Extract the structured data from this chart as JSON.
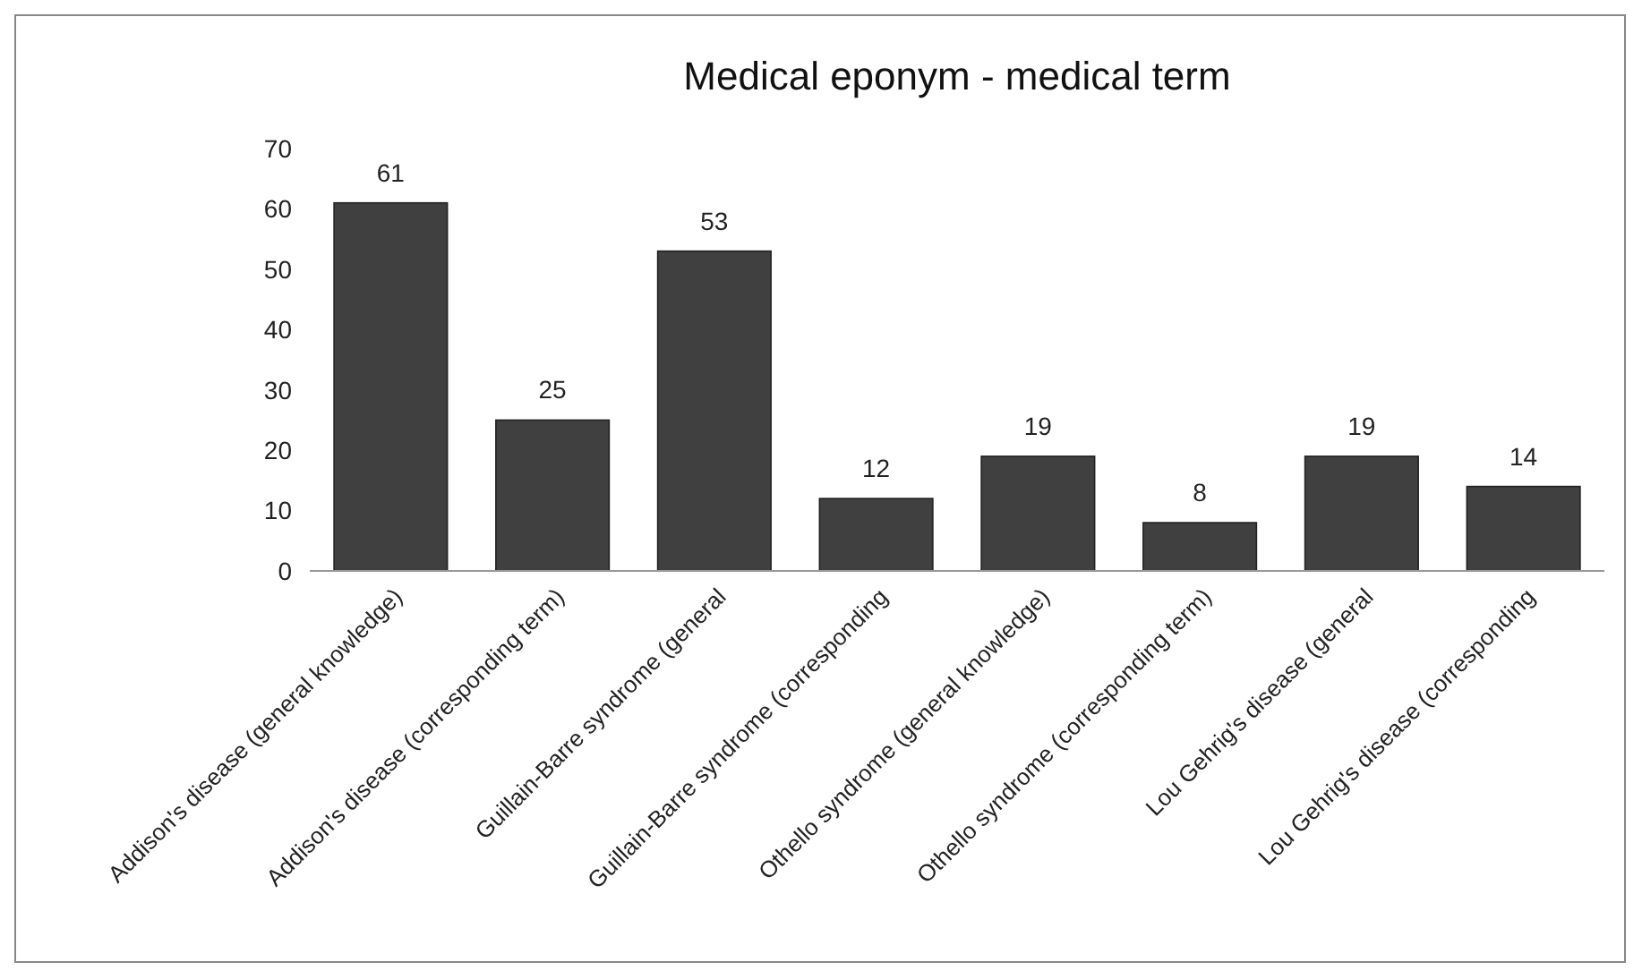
{
  "chart_data": {
    "type": "bar",
    "title": "Medical eponym - medical term",
    "categories": [
      "Addison's disease (general knowledge)",
      "Addison's disease (corresponding term)",
      "Guillain-Barre syndrome (general",
      "Guillain-Barre syndrome (corresponding",
      "Othello syndrome (general knowledge)",
      "Othello syndrome (corresponding term)",
      "Lou Gehrig's disease (general",
      "Lou Gehrig's disease (corresponding"
    ],
    "values": [
      61,
      25,
      53,
      12,
      19,
      8,
      19,
      14
    ],
    "color": "#404040",
    "ylim": [
      0,
      70
    ],
    "yticks": [
      0,
      10,
      20,
      30,
      40,
      50,
      60,
      70
    ],
    "data_labels": true,
    "grid": false
  }
}
